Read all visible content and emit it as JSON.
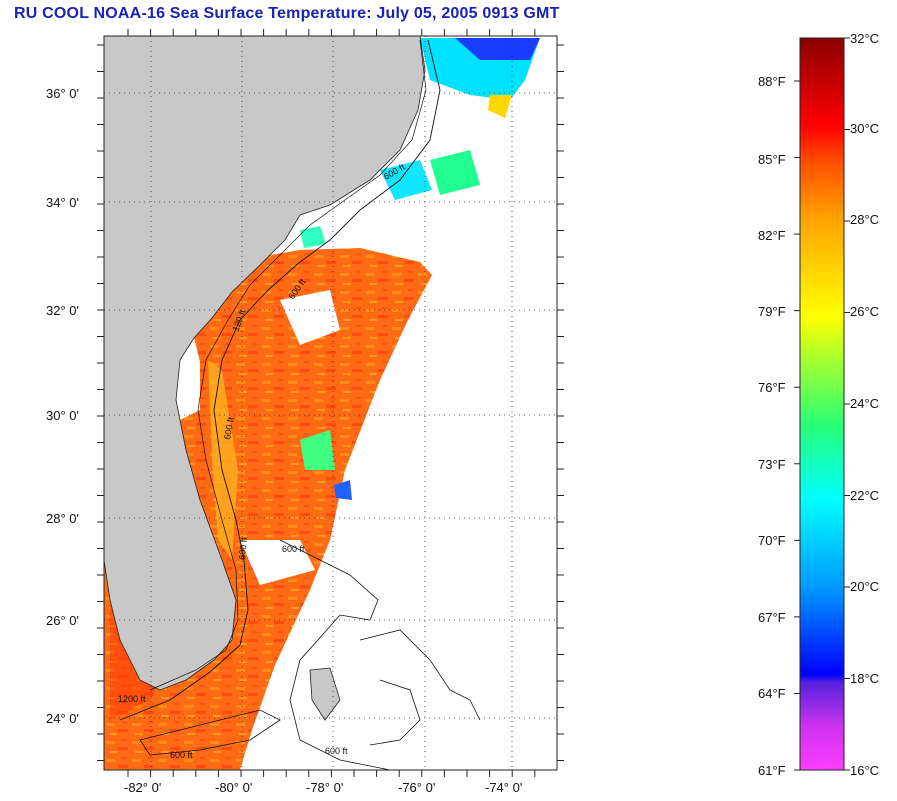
{
  "title": "RU COOL  NOAA-16  Sea Surface Temperature:  July 05, 2005 0913 GMT",
  "map": {
    "lat_labels": [
      "36° 0'",
      "34° 0'",
      "32° 0'",
      "30° 0'",
      "28° 0'",
      "26° 0'",
      "24° 0'"
    ],
    "lon_labels": [
      "-82° 0'",
      "-80° 0'",
      "-78° 0'",
      "-76° 0'",
      "-74° 0'"
    ],
    "contour_labels": [
      "600 ft",
      "120 ft",
      "600 ft",
      "600 ft",
      "600 ft",
      "600 ft",
      "1200 ft",
      "600 ft",
      "600 ft"
    ],
    "colors": {
      "land": "#c8c8c8",
      "no_data": "#ffffff",
      "warm_water": "#ff6a14",
      "grid": "#333333"
    }
  },
  "colorbar": {
    "celsius": [
      "32°C",
      "30°C",
      "28°C",
      "26°C",
      "24°C",
      "22°C",
      "20°C",
      "18°C",
      "16°C"
    ],
    "fahrenheit": [
      "88°F",
      "85°F",
      "82°F",
      "79°F",
      "76°F",
      "73°F",
      "70°F",
      "67°F",
      "64°F",
      "61°F"
    ],
    "range_celsius": [
      16,
      32
    ],
    "stops": [
      "#ff3cff",
      "#8a1fd8",
      "#0000ff",
      "#0099ff",
      "#00ffff",
      "#28ff78",
      "#b4ff28",
      "#ffff00",
      "#ffa500",
      "#ff5000",
      "#ff0000",
      "#8b0000"
    ]
  }
}
